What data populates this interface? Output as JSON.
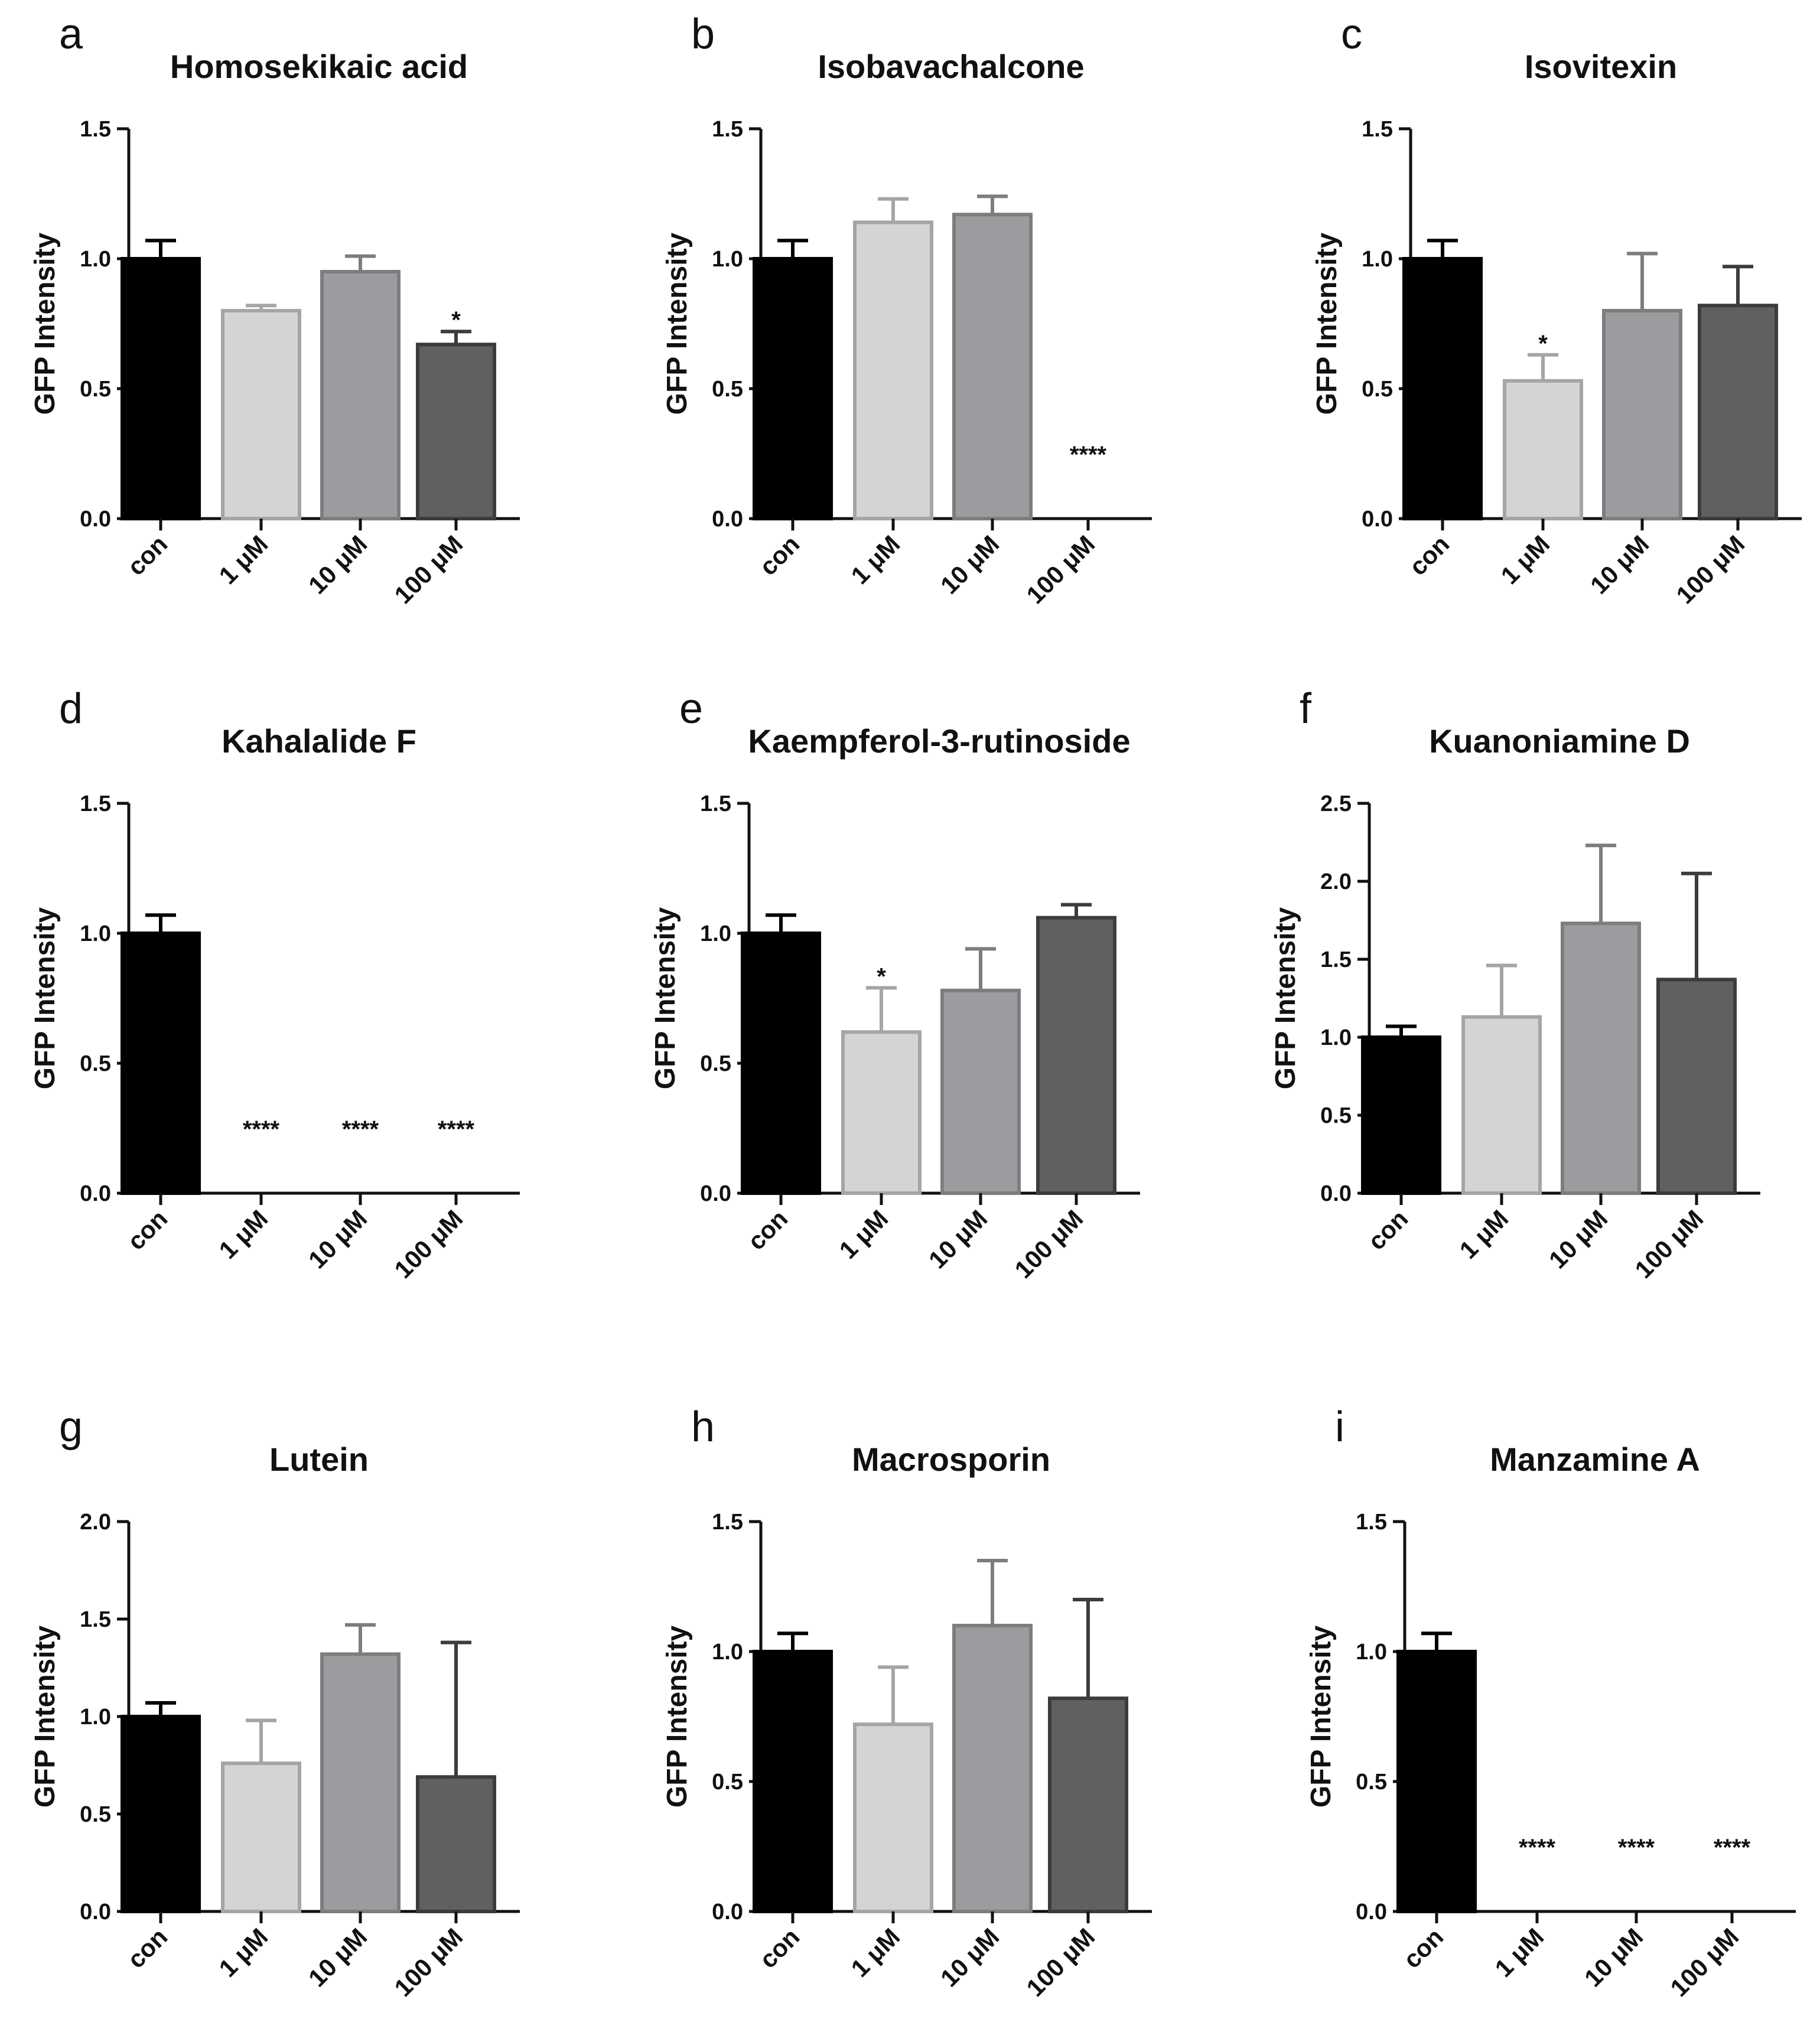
{
  "figure": {
    "y_axis_label": "GFP Intensity",
    "categories": [
      "con",
      "1 μM",
      "10 μM",
      "100 μM"
    ],
    "bar_colors": {
      "fills": [
        "#000000",
        "#d4d4d4",
        "#9c9ca0",
        "#606060"
      ],
      "strokes": [
        "#000000",
        "#a5a5a5",
        "#7d7d7d",
        "#3c3c3c"
      ]
    }
  },
  "chart_data": [
    {
      "type": "bar",
      "panel": "a",
      "title": "Homosekikaic acid",
      "xlabel": "",
      "ylabel": "GFP Intensity",
      "categories": [
        "con",
        "1 μM",
        "10 μM",
        "100 μM"
      ],
      "values": [
        1.0,
        0.8,
        0.95,
        0.67
      ],
      "errors": [
        0.07,
        0.02,
        0.06,
        0.05
      ],
      "significance": [
        "",
        "",
        "",
        "*"
      ],
      "ylim": [
        0,
        1.5
      ],
      "yticks": [
        "0.0",
        "0.5",
        "1.0",
        "1.5"
      ]
    },
    {
      "type": "bar",
      "panel": "b",
      "title": "Isobavachalcone",
      "xlabel": "",
      "ylabel": "GFP Intensity",
      "categories": [
        "con",
        "1 μM",
        "10 μM",
        "100 μM"
      ],
      "values": [
        1.0,
        1.14,
        1.17,
        0.0
      ],
      "errors": [
        0.07,
        0.09,
        0.07,
        0.0
      ],
      "significance": [
        "",
        "",
        "",
        "****"
      ],
      "ylim": [
        0,
        1.5
      ],
      "yticks": [
        "0.0",
        "0.5",
        "1.0",
        "1.5"
      ]
    },
    {
      "type": "bar",
      "panel": "c",
      "title": "Isovitexin",
      "xlabel": "",
      "ylabel": "GFP Intensity",
      "categories": [
        "con",
        "1 μM",
        "10 μM",
        "100 μM"
      ],
      "values": [
        1.0,
        0.53,
        0.8,
        0.82
      ],
      "errors": [
        0.07,
        0.1,
        0.22,
        0.15
      ],
      "significance": [
        "",
        "*",
        "",
        ""
      ],
      "ylim": [
        0,
        1.5
      ],
      "yticks": [
        "0.0",
        "0.5",
        "1.0",
        "1.5"
      ]
    },
    {
      "type": "bar",
      "panel": "d",
      "title": "Kahalalide F",
      "xlabel": "",
      "ylabel": "GFP Intensity",
      "categories": [
        "con",
        "1 μM",
        "10 μM",
        "100 μM"
      ],
      "values": [
        1.0,
        0.0,
        0.0,
        0.0
      ],
      "errors": [
        0.07,
        0.0,
        0.0,
        0.0
      ],
      "significance": [
        "",
        "****",
        "****",
        "****"
      ],
      "ylim": [
        0,
        1.5
      ],
      "yticks": [
        "0.0",
        "0.5",
        "1.0",
        "1.5"
      ]
    },
    {
      "type": "bar",
      "panel": "e",
      "title": "Kaempferol-3-rutinoside",
      "xlabel": "",
      "ylabel": "GFP Intensity",
      "categories": [
        "con",
        "1 μM",
        "10 μM",
        "100 μM"
      ],
      "values": [
        1.0,
        0.62,
        0.78,
        1.06
      ],
      "errors": [
        0.07,
        0.17,
        0.16,
        0.05
      ],
      "significance": [
        "",
        "*",
        "",
        ""
      ],
      "ylim": [
        0,
        1.5
      ],
      "yticks": [
        "0.0",
        "0.5",
        "1.0",
        "1.5"
      ]
    },
    {
      "type": "bar",
      "panel": "f",
      "title": "Kuanoniamine D",
      "xlabel": "",
      "ylabel": "GFP Intensity",
      "categories": [
        "con",
        "1 μM",
        "10 μM",
        "100 μM"
      ],
      "values": [
        1.0,
        1.13,
        1.73,
        1.37
      ],
      "errors": [
        0.07,
        0.33,
        0.5,
        0.68
      ],
      "significance": [
        "",
        "",
        "",
        ""
      ],
      "ylim": [
        0,
        2.5
      ],
      "yticks": [
        "0.0",
        "0.5",
        "1.0",
        "1.5",
        "2.0",
        "2.5"
      ]
    },
    {
      "type": "bar",
      "panel": "g",
      "title": "Lutein",
      "xlabel": "",
      "ylabel": "GFP Intensity",
      "categories": [
        "con",
        "1 μM",
        "10 μM",
        "100 μM"
      ],
      "values": [
        1.0,
        0.76,
        1.32,
        0.69
      ],
      "errors": [
        0.07,
        0.22,
        0.15,
        0.69
      ],
      "significance": [
        "",
        "",
        "",
        ""
      ],
      "ylim": [
        0,
        2.0
      ],
      "yticks": [
        "0.0",
        "0.5",
        "1.0",
        "1.5",
        "2.0"
      ]
    },
    {
      "type": "bar",
      "panel": "h",
      "title": "Macrosporin",
      "xlabel": "",
      "ylabel": "GFP Intensity",
      "categories": [
        "con",
        "1 μM",
        "10 μM",
        "100 μM"
      ],
      "values": [
        1.0,
        0.72,
        1.1,
        0.82
      ],
      "errors": [
        0.07,
        0.22,
        0.25,
        0.38
      ],
      "significance": [
        "",
        "",
        "",
        ""
      ],
      "ylim": [
        0,
        1.5
      ],
      "yticks": [
        "0.0",
        "0.5",
        "1.0",
        "1.5"
      ]
    },
    {
      "type": "bar",
      "panel": "i",
      "title": "Manzamine A",
      "xlabel": "",
      "ylabel": "GFP Intensity",
      "categories": [
        "con",
        "1 μM",
        "10 μM",
        "100 μM"
      ],
      "values": [
        1.0,
        0.0,
        0.0,
        0.0
      ],
      "errors": [
        0.07,
        0.0,
        0.0,
        0.0
      ],
      "significance": [
        "",
        "****",
        "****",
        "****"
      ],
      "ylim": [
        0,
        1.5
      ],
      "yticks": [
        "0.0",
        "0.5",
        "1.0",
        "1.5"
      ]
    }
  ]
}
